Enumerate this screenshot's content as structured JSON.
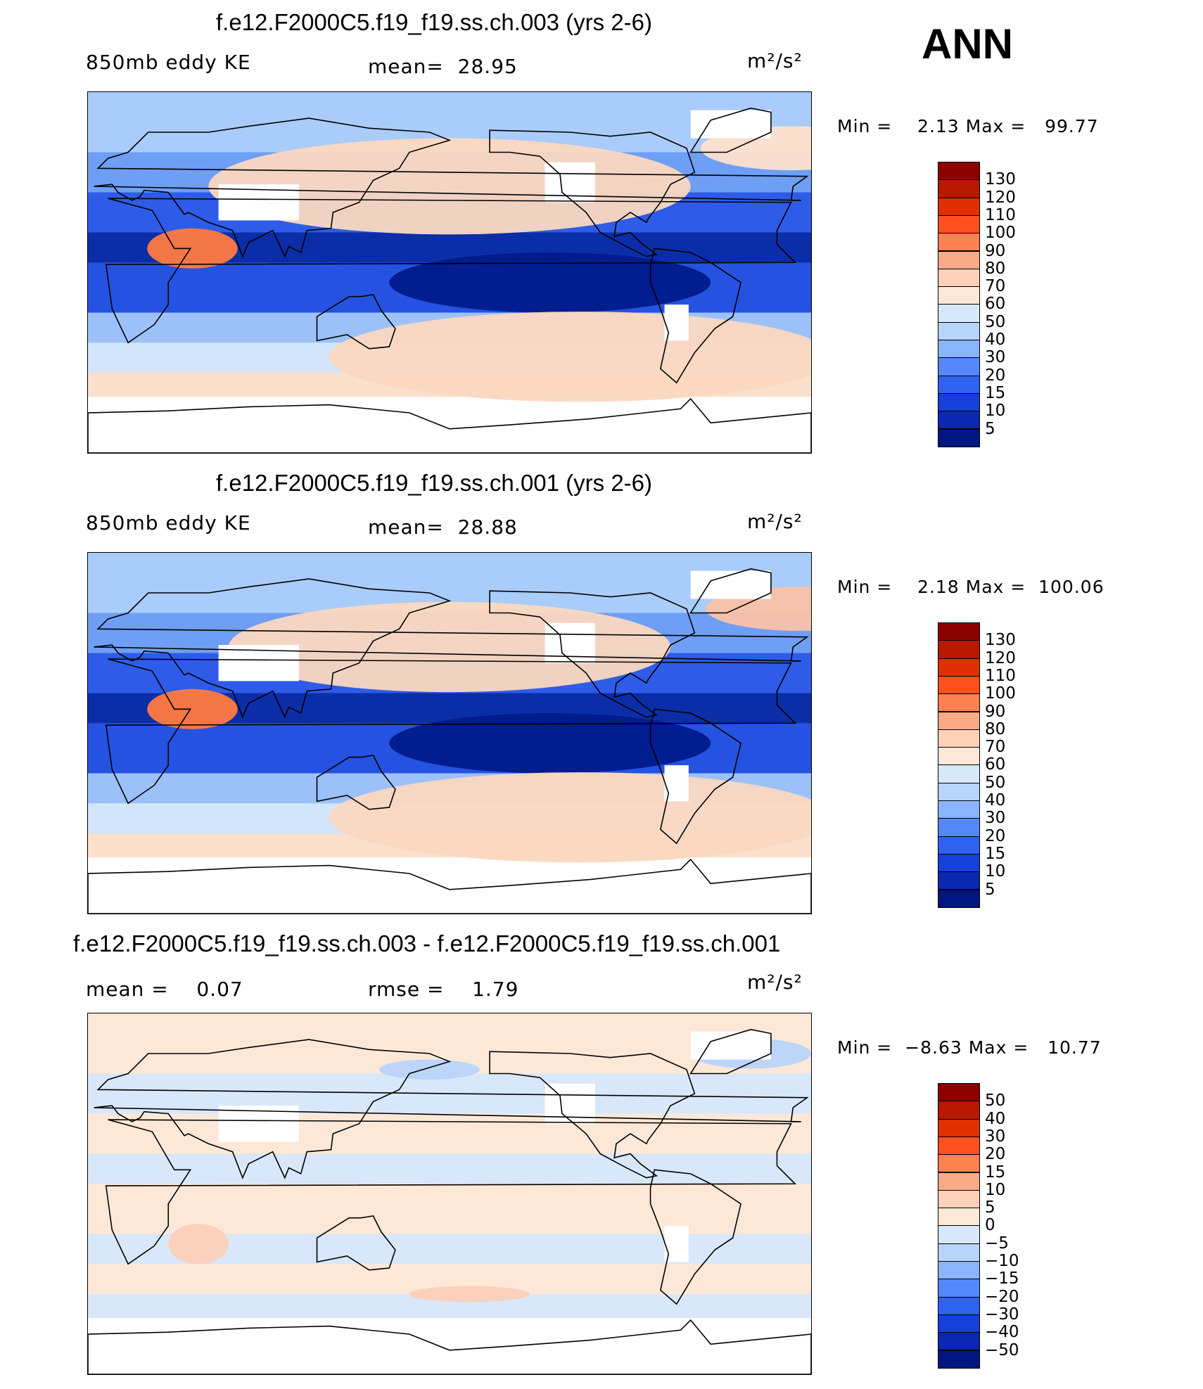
{
  "season": "ANN",
  "panels": [
    {
      "title": "f.e12.F2000C5.f19_f19.ss.ch.003 (yrs 2-6)",
      "left_label": "850mb eddy KE",
      "mid_label": "mean=  28.95",
      "units": "m²/s²",
      "minmax": "Min =    2.13 Max =   99.77",
      "colorbar": {
        "labels": [
          "130",
          "120",
          "110",
          "100",
          "90",
          "80",
          "70",
          "60",
          "50",
          "40",
          "30",
          "20",
          "15",
          "10",
          "5"
        ],
        "colors": [
          "#8b0000",
          "#b81800",
          "#e03000",
          "#ff5020",
          "#ff8050",
          "#fbaa88",
          "#fdd0b8",
          "#fde8d8",
          "#d8e8fa",
          "#b8d4fb",
          "#8ab4fb",
          "#5488f8",
          "#2f62ee",
          "#1740d8",
          "#0b28b0",
          "#001680"
        ]
      },
      "map": {
        "band_colors": [
          "#a9ccfa",
          "#6e9ff5",
          "#2e5ce8",
          "#0b2ea8",
          "#2552e0",
          "#9cc1f8",
          "#d3e5fb",
          "#fbe0cc",
          "#ffffff"
        ],
        "blobs": [
          {
            "c": "#fbd8c0",
            "lon": 180,
            "lat": 43,
            "w": 240,
            "h": 48,
            "note": "NPac"
          },
          {
            "c": "#001a8a",
            "lon": 230,
            "lat": -5,
            "w": 160,
            "h": 30,
            "note": "Eq Pac min"
          },
          {
            "c": "#ff7a40",
            "lon": 52,
            "lat": 12,
            "w": 45,
            "h": 20,
            "note": "Somali jet"
          },
          {
            "c": "#fbd8c0",
            "lon": 245,
            "lat": -42,
            "w": 250,
            "h": 45,
            "note": "S Pac"
          },
          {
            "c": "#fde0cc",
            "lon": 350,
            "lat": 62,
            "w": 90,
            "h": 22,
            "note": "Iceland"
          }
        ]
      }
    },
    {
      "title": "f.e12.F2000C5.f19_f19.ss.ch.001 (yrs 2-6)",
      "left_label": "850mb eddy KE",
      "mid_label": "mean=  28.88",
      "units": "m²/s²",
      "minmax": "Min =    2.18 Max =  100.06",
      "colorbar": {
        "labels": [
          "130",
          "120",
          "110",
          "100",
          "90",
          "80",
          "70",
          "60",
          "50",
          "40",
          "30",
          "20",
          "15",
          "10",
          "5"
        ],
        "colors": [
          "#8b0000",
          "#b81800",
          "#e03000",
          "#ff5020",
          "#ff8050",
          "#fbaa88",
          "#fdd0b8",
          "#fde8d8",
          "#d8e8fa",
          "#b8d4fb",
          "#8ab4fb",
          "#5488f8",
          "#2f62ee",
          "#1740d8",
          "#0b28b0",
          "#001680"
        ]
      },
      "map": {
        "band_colors": [
          "#a9ccfa",
          "#6e9ff5",
          "#2e5ce8",
          "#0b2ea8",
          "#2552e0",
          "#9cc1f8",
          "#d3e5fb",
          "#fbe0cc",
          "#ffffff"
        ],
        "blobs": [
          {
            "c": "#fbd8c0",
            "lon": 180,
            "lat": 43,
            "w": 220,
            "h": 45,
            "note": "NPac"
          },
          {
            "c": "#001a8a",
            "lon": 230,
            "lat": -5,
            "w": 160,
            "h": 30,
            "note": "Eq Pac min"
          },
          {
            "c": "#ff7a40",
            "lon": 52,
            "lat": 12,
            "w": 45,
            "h": 20,
            "note": "Somali jet"
          },
          {
            "c": "#fbd8c0",
            "lon": 245,
            "lat": -42,
            "w": 250,
            "h": 45,
            "note": "S Pac"
          },
          {
            "c": "#f9c2a8",
            "lon": 355,
            "lat": 62,
            "w": 95,
            "h": 22,
            "note": "Iceland"
          }
        ]
      }
    },
    {
      "title": "f.e12.F2000C5.f19_f19.ss.ch.003 - f.e12.F2000C5.f19_f19.ss.ch.001",
      "left_label": "mean =    0.07",
      "mid_label": "rmse =    1.79",
      "units": "m²/s²",
      "minmax": "Min =  −8.63 Max =   10.77",
      "colorbar": {
        "labels": [
          "50",
          "40",
          "30",
          "20",
          "15",
          "10",
          "5",
          "0",
          "−5",
          "−10",
          "−15",
          "−20",
          "−30",
          "−40",
          "−50"
        ],
        "colors": [
          "#8b0000",
          "#b81800",
          "#e03000",
          "#ff5020",
          "#ff8050",
          "#fbaa88",
          "#fdd0b8",
          "#fde8d8",
          "#d8e8fa",
          "#b8d4fb",
          "#8ab4fb",
          "#5488f8",
          "#2f62ee",
          "#1740d8",
          "#0b28b0",
          "#001680"
        ]
      },
      "map": {
        "band_colors": [
          "#fde8d8",
          "#d8e8fa",
          "#fde8d8",
          "#d8e8fa",
          "#fde8d8",
          "#d8e8fa",
          "#fde8d8",
          "#d8e8fa",
          "#ffffff"
        ],
        "blobs": [
          {
            "c": "#fbd0b8",
            "lon": 55,
            "lat": -25,
            "w": 30,
            "h": 20,
            "note": "Madagascar"
          },
          {
            "c": "#b8d4fb",
            "lon": 330,
            "lat": 70,
            "w": 60,
            "h": 15,
            "note": "Greenland sea"
          },
          {
            "c": "#b8d4fb",
            "lon": 170,
            "lat": 62,
            "w": 50,
            "h": 10,
            "note": "Bering"
          },
          {
            "c": "#fbd0b8",
            "lon": 190,
            "lat": -50,
            "w": 60,
            "h": 8,
            "note": "S Ocean"
          }
        ]
      }
    }
  ]
}
